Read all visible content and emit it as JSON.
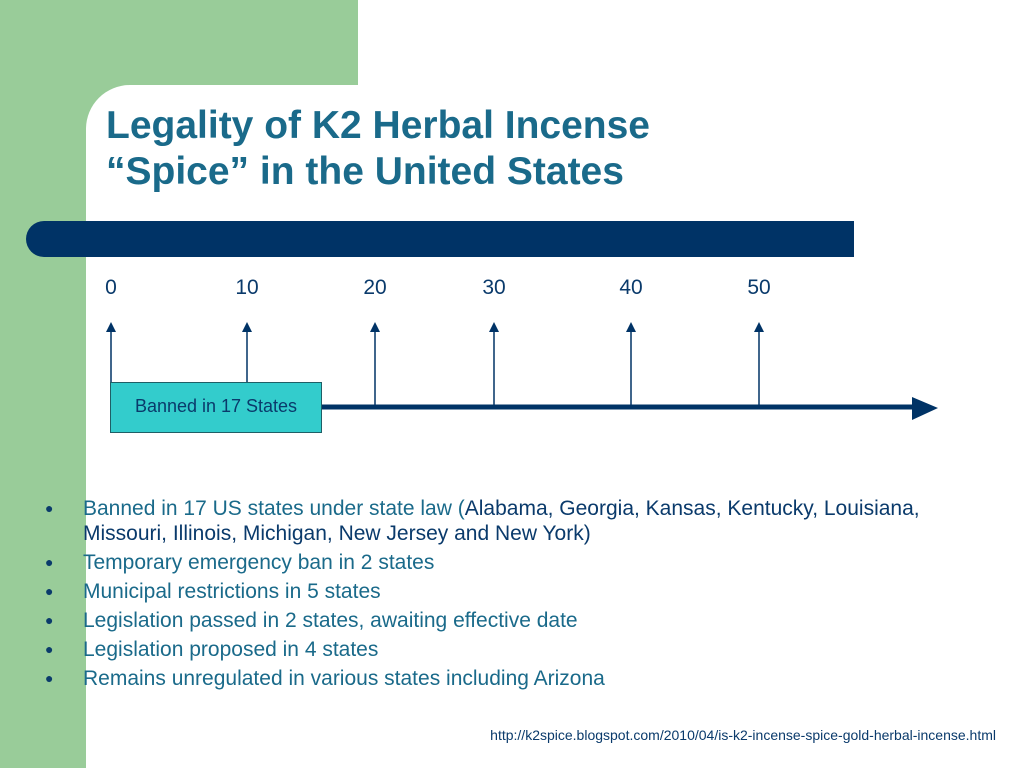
{
  "slide": {
    "title_line1": "Legality of K2 Herbal Incense",
    "title_line2": "“Spice” in the United States",
    "colors": {
      "sidebar_green": "#99cc99",
      "navy": "#003366",
      "teal_text": "#1a6a8a",
      "box_fill": "#33cccc"
    }
  },
  "timeline": {
    "ticks": [
      "0",
      "10",
      "20",
      "30",
      "40",
      "50"
    ],
    "box_label": "Banned in 17 States"
  },
  "bullets": [
    {
      "text_prefix": "Banned in 17 US states under state law (",
      "text_rest": "Alabama, Georgia, Kansas, Kentucky, Louisiana, Missouri, Illinois, Michigan, New Jersey and New York)"
    },
    {
      "text": "Temporary emergency ban in 2 states"
    },
    {
      "text": "Municipal restrictions in 5 states"
    },
    {
      "text": "Legislation passed in 2 states, awaiting effective date"
    },
    {
      "text": "Legislation proposed in 4 states"
    },
    {
      "text": "Remains unregulated in various states including Arizona"
    }
  ],
  "footer": {
    "source_url": "http://k2spice.blogspot.com/2010/04/is-k2-incense-spice-gold-herbal-incense.html"
  }
}
